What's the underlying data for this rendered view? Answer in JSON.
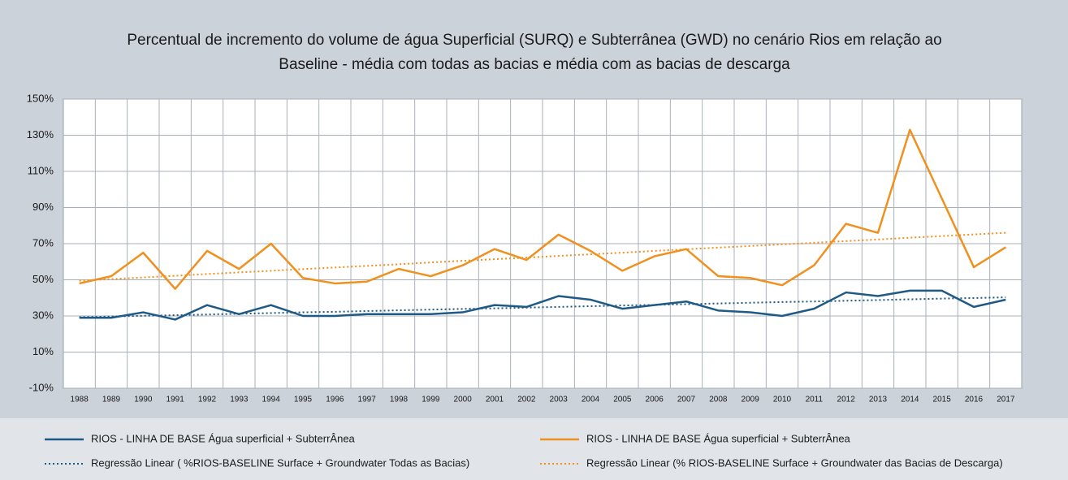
{
  "chart_data": {
    "type": "line",
    "title": [
      "Percentual de incremento do volume de água Superficial (SURQ) e Subterrânea (GWD) no cenário Rios em relação ao",
      "Baseline - média com todas as bacias e média com as bacias de descarga"
    ],
    "categories": [
      "1988",
      "1989",
      "1990",
      "1991",
      "1992",
      "1993",
      "1994",
      "1995",
      "1996",
      "1997",
      "1998",
      "1999",
      "2000",
      "2001",
      "2002",
      "2003",
      "2004",
      "2005",
      "2006",
      "2007",
      "2008",
      "2009",
      "2010",
      "2011",
      "2012",
      "2013",
      "2014",
      "2015",
      "2016",
      "2017"
    ],
    "series": [
      {
        "name": "RIOS - LINHA DE BASE Água superficial + SubterrÂnea",
        "color": "#1f5a85",
        "dashed": false,
        "values": [
          29,
          29,
          32,
          28,
          36,
          31,
          36,
          30,
          30,
          31,
          31,
          31,
          32,
          36,
          35,
          41,
          39,
          34,
          36,
          38,
          33,
          32,
          30,
          34,
          43,
          41,
          44,
          44,
          35,
          39
        ]
      },
      {
        "name": "RIOS - LINHA DE BASE Água superficial + SubterrÂnea",
        "color": "#f0901e",
        "dashed": false,
        "values": [
          48,
          52,
          65,
          45,
          66,
          56,
          70,
          51,
          48,
          49,
          56,
          52,
          58,
          67,
          61,
          75,
          66,
          55,
          63,
          67,
          52,
          51,
          47,
          58,
          81,
          76,
          133,
          95,
          57,
          68
        ]
      },
      {
        "name": "Regressão Linear ( %RIOS-BASELINE Surface + Groundwater Todas as Bacias)",
        "color": "#1f5a85",
        "dashed": true,
        "values": [
          29.3,
          29.7,
          30.1,
          30.4,
          30.8,
          31.2,
          31.6,
          32.0,
          32.3,
          32.7,
          33.1,
          33.5,
          33.9,
          34.2,
          34.6,
          35.0,
          35.4,
          35.8,
          36.1,
          36.5,
          36.9,
          37.3,
          37.7,
          38.0,
          38.4,
          38.8,
          39.2,
          39.6,
          39.9,
          40.3
        ]
      },
      {
        "name": "Regressão Linear (% RIOS-BASELINE  Surface + Groundwater das Bacias de Descarga)",
        "color": "#f0901e",
        "dashed": true,
        "values": [
          49.5,
          50.4,
          51.3,
          52.2,
          53.2,
          54.1,
          55.0,
          55.9,
          56.8,
          57.7,
          58.6,
          59.6,
          60.5,
          61.4,
          62.3,
          63.2,
          64.1,
          65.0,
          66.0,
          66.9,
          67.8,
          68.7,
          69.6,
          70.5,
          71.4,
          72.3,
          73.3,
          74.2,
          75.1,
          76.0
        ]
      }
    ],
    "ylim": [
      -10,
      150
    ],
    "yticks": [
      {
        "value": -10,
        "label": "-10%"
      },
      {
        "value": 10,
        "label": "10%"
      },
      {
        "value": 30,
        "label": "30%"
      },
      {
        "value": 50,
        "label": "50%"
      },
      {
        "value": 70,
        "label": "70%"
      },
      {
        "value": 90,
        "label": "90%"
      },
      {
        "value": 110,
        "label": "110%"
      },
      {
        "value": 130,
        "label": "130%"
      },
      {
        "value": 150,
        "label": "150%"
      }
    ],
    "grid": true
  }
}
